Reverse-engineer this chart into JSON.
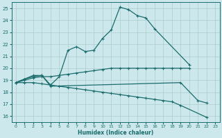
{
  "xlabel": "Humidex (Indice chaleur)",
  "bg_color": "#cce8ec",
  "grid_color": "#aacccc",
  "line_color": "#1a6b6b",
  "xlim": [
    -0.5,
    23.5
  ],
  "ylim": [
    15.5,
    25.5
  ],
  "xticks": [
    0,
    1,
    2,
    3,
    4,
    5,
    6,
    7,
    8,
    9,
    10,
    11,
    12,
    13,
    14,
    15,
    16,
    17,
    18,
    19,
    20,
    21,
    22,
    23
  ],
  "yticks": [
    16,
    17,
    18,
    19,
    20,
    21,
    22,
    23,
    24,
    25
  ],
  "series": [
    {
      "x": [
        0,
        1,
        2,
        3,
        4,
        5,
        6,
        7,
        8,
        9,
        10,
        11,
        12,
        13,
        14,
        15,
        16,
        20
      ],
      "y": [
        18.8,
        19.1,
        19.4,
        19.4,
        18.6,
        19.3,
        21.5,
        21.8,
        21.4,
        21.5,
        22.5,
        23.2,
        25.1,
        24.9,
        24.4,
        24.2,
        23.3,
        20.3
      ]
    },
    {
      "x": [
        0,
        1,
        2,
        3,
        4,
        5,
        6,
        7,
        8,
        9,
        10,
        11,
        12,
        13,
        14,
        15,
        16,
        17,
        18,
        19,
        20
      ],
      "y": [
        18.8,
        19.0,
        19.2,
        19.3,
        19.3,
        19.4,
        19.5,
        19.6,
        19.7,
        19.8,
        19.9,
        20.0,
        20.0,
        20.0,
        20.0,
        20.0,
        20.0,
        20.0,
        20.0,
        20.0,
        20.0
      ]
    },
    {
      "x": [
        0,
        1,
        2,
        3,
        4,
        5,
        6,
        7,
        8,
        9,
        10,
        11,
        12,
        13,
        14,
        15,
        16,
        17,
        18,
        19,
        22
      ],
      "y": [
        18.8,
        18.8,
        18.8,
        18.7,
        18.6,
        18.5,
        18.4,
        18.3,
        18.2,
        18.1,
        18.0,
        17.9,
        17.8,
        17.7,
        17.6,
        17.5,
        17.4,
        17.3,
        17.2,
        16.9,
        15.9
      ]
    },
    {
      "x": [
        0,
        1,
        2,
        3,
        4,
        19,
        21,
        22
      ],
      "y": [
        18.8,
        19.1,
        19.3,
        19.4,
        18.5,
        18.8,
        17.3,
        17.1
      ]
    }
  ]
}
